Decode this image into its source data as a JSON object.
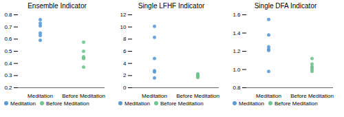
{
  "chart_data": [
    {
      "type": "scatter",
      "title": "Ensemble Indicator",
      "categories": [
        "Meditation",
        "Before Meditation"
      ],
      "series": [
        {
          "name": "Meditation",
          "color": "#5B9BD5",
          "x": [
            "Meditation",
            "Meditation",
            "Meditation",
            "Meditation",
            "Meditation",
            "Meditation"
          ],
          "values": [
            0.76,
            0.73,
            0.71,
            0.65,
            0.63,
            0.59
          ]
        },
        {
          "name": "Before Meditation",
          "color": "#70C48F",
          "x": [
            "Before Meditation",
            "Before Meditation",
            "Before Meditation",
            "Before Meditation",
            "Before Meditation",
            "Before Meditation"
          ],
          "values": [
            0.575,
            0.5,
            0.455,
            0.445,
            0.44,
            0.37
          ]
        }
      ],
      "ylim": [
        0.2,
        0.8
      ],
      "yticks": [
        0.2,
        0.3,
        0.4,
        0.5,
        0.6,
        0.7,
        0.8
      ],
      "grid": false,
      "legend": "bottom"
    },
    {
      "type": "scatter",
      "title": "Single LFHF Indicator",
      "categories": [
        "Meditation",
        "Before Meditation"
      ],
      "series": [
        {
          "name": "Meditation",
          "color": "#5B9BD5",
          "x": [
            "Meditation",
            "Meditation",
            "Meditation",
            "Meditation",
            "Meditation",
            "Meditation"
          ],
          "values": [
            10.1,
            8.3,
            4.8,
            2.8,
            2.6,
            1.6
          ]
        },
        {
          "name": "Before Meditation",
          "color": "#70C48F",
          "x": [
            "Before Meditation",
            "Before Meditation",
            "Before Meditation",
            "Before Meditation",
            "Before Meditation",
            "Before Meditation"
          ],
          "values": [
            2.3,
            2.1,
            2.0,
            1.9,
            1.85,
            1.7
          ]
        }
      ],
      "ylim": [
        0,
        12
      ],
      "yticks": [
        0,
        2,
        4,
        6,
        8,
        10,
        12
      ],
      "grid": false,
      "legend": "bottom"
    },
    {
      "type": "scatter",
      "title": "Single DFA Indicator",
      "categories": [
        "Meditation",
        "Before Meditation"
      ],
      "series": [
        {
          "name": "Meditation",
          "color": "#5B9BD5",
          "x": [
            "Meditation",
            "Meditation",
            "Meditation",
            "Meditation",
            "Meditation",
            "Meditation"
          ],
          "values": [
            1.55,
            1.38,
            1.25,
            1.22,
            1.21,
            0.98
          ]
        },
        {
          "name": "Before Meditation",
          "color": "#70C48F",
          "x": [
            "Before Meditation",
            "Before Meditation",
            "Before Meditation",
            "Before Meditation",
            "Before Meditation",
            "Before Meditation"
          ],
          "values": [
            1.12,
            1.06,
            1.03,
            1.02,
            1.0,
            0.98
          ]
        }
      ],
      "ylim": [
        0.8,
        1.6
      ],
      "yticks": [
        0.8,
        {
          "value": 1,
          "label": "1.0"
        },
        1.2,
        1.4,
        1.6
      ],
      "grid": false,
      "legend": "bottom"
    }
  ]
}
